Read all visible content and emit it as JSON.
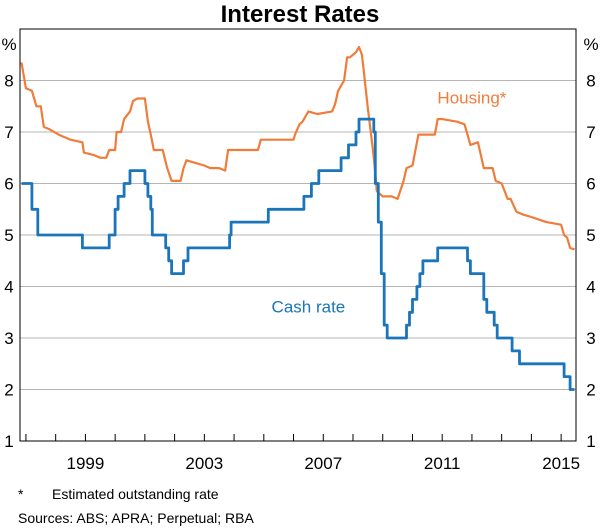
{
  "chart_data": {
    "type": "line",
    "title": "Interest Rates",
    "y_unit": "%",
    "ylim": [
      1,
      9
    ],
    "y_ticks": [
      1,
      2,
      3,
      4,
      5,
      6,
      7,
      8
    ],
    "xlim": [
      1996.8,
      2015.5
    ],
    "x_ticks": [
      1999,
      2003,
      2007,
      2011,
      2015
    ],
    "series": [
      {
        "name": "Housing*",
        "color": "#f07c3a",
        "step": false,
        "points": [
          [
            1996.85,
            8.35
          ],
          [
            1997.0,
            7.85
          ],
          [
            1997.2,
            7.8
          ],
          [
            1997.35,
            7.5
          ],
          [
            1997.5,
            7.5
          ],
          [
            1997.6,
            7.1
          ],
          [
            1997.8,
            7.05
          ],
          [
            1998.1,
            6.95
          ],
          [
            1998.5,
            6.85
          ],
          [
            1998.9,
            6.8
          ],
          [
            1998.95,
            6.6
          ],
          [
            1999.3,
            6.55
          ],
          [
            1999.5,
            6.5
          ],
          [
            1999.7,
            6.5
          ],
          [
            1999.8,
            6.65
          ],
          [
            2000.0,
            6.65
          ],
          [
            2000.05,
            7.0
          ],
          [
            2000.2,
            7.0
          ],
          [
            2000.3,
            7.25
          ],
          [
            2000.5,
            7.4
          ],
          [
            2000.6,
            7.6
          ],
          [
            2000.75,
            7.65
          ],
          [
            2001.0,
            7.65
          ],
          [
            2001.1,
            7.2
          ],
          [
            2001.2,
            6.95
          ],
          [
            2001.3,
            6.65
          ],
          [
            2001.6,
            6.65
          ],
          [
            2001.75,
            6.3
          ],
          [
            2001.9,
            6.05
          ],
          [
            2002.2,
            6.05
          ],
          [
            2002.3,
            6.3
          ],
          [
            2002.4,
            6.45
          ],
          [
            2002.7,
            6.4
          ],
          [
            2003.0,
            6.35
          ],
          [
            2003.2,
            6.3
          ],
          [
            2003.5,
            6.3
          ],
          [
            2003.7,
            6.25
          ],
          [
            2003.75,
            6.45
          ],
          [
            2003.8,
            6.65
          ],
          [
            2004.2,
            6.65
          ],
          [
            2004.8,
            6.65
          ],
          [
            2004.9,
            6.85
          ],
          [
            2005.5,
            6.85
          ],
          [
            2006.0,
            6.85
          ],
          [
            2006.05,
            6.95
          ],
          [
            2006.2,
            7.15
          ],
          [
            2006.3,
            7.2
          ],
          [
            2006.5,
            7.4
          ],
          [
            2006.8,
            7.35
          ],
          [
            2007.3,
            7.4
          ],
          [
            2007.4,
            7.55
          ],
          [
            2007.5,
            7.8
          ],
          [
            2007.7,
            8.0
          ],
          [
            2007.8,
            8.45
          ],
          [
            2007.9,
            8.45
          ],
          [
            2008.1,
            8.55
          ],
          [
            2008.2,
            8.65
          ],
          [
            2008.3,
            8.5
          ],
          [
            2008.35,
            8.25
          ],
          [
            2008.5,
            7.45
          ],
          [
            2008.6,
            7.0
          ],
          [
            2008.7,
            6.5
          ],
          [
            2008.75,
            6.2
          ],
          [
            2008.8,
            5.85
          ],
          [
            2009.0,
            5.75
          ],
          [
            2009.3,
            5.75
          ],
          [
            2009.5,
            5.7
          ],
          [
            2009.7,
            6.05
          ],
          [
            2009.8,
            6.3
          ],
          [
            2010.0,
            6.35
          ],
          [
            2010.2,
            6.95
          ],
          [
            2010.5,
            6.95
          ],
          [
            2010.75,
            6.95
          ],
          [
            2010.85,
            7.25
          ],
          [
            2011.0,
            7.25
          ],
          [
            2011.5,
            7.2
          ],
          [
            2011.75,
            7.15
          ],
          [
            2011.85,
            6.95
          ],
          [
            2011.95,
            6.75
          ],
          [
            2012.2,
            6.8
          ],
          [
            2012.3,
            6.55
          ],
          [
            2012.4,
            6.3
          ],
          [
            2012.7,
            6.3
          ],
          [
            2012.8,
            6.05
          ],
          [
            2013.0,
            6.0
          ],
          [
            2013.2,
            5.7
          ],
          [
            2013.3,
            5.7
          ],
          [
            2013.5,
            5.45
          ],
          [
            2013.7,
            5.4
          ],
          [
            2014.0,
            5.35
          ],
          [
            2014.5,
            5.25
          ],
          [
            2015.0,
            5.2
          ],
          [
            2015.1,
            5.0
          ],
          [
            2015.2,
            4.95
          ],
          [
            2015.3,
            4.75
          ],
          [
            2015.45,
            4.72
          ]
        ]
      },
      {
        "name": "Cash rate",
        "color": "#1b75bb",
        "step": true,
        "points": [
          [
            1996.85,
            6.0
          ],
          [
            1997.2,
            5.5
          ],
          [
            1997.4,
            5.0
          ],
          [
            1998.9,
            4.75
          ],
          [
            1999.8,
            5.0
          ],
          [
            2000.0,
            5.5
          ],
          [
            2000.1,
            5.75
          ],
          [
            2000.3,
            6.0
          ],
          [
            2000.5,
            6.25
          ],
          [
            2001.0,
            6.0
          ],
          [
            2001.1,
            5.75
          ],
          [
            2001.2,
            5.5
          ],
          [
            2001.25,
            5.0
          ],
          [
            2001.7,
            4.75
          ],
          [
            2001.8,
            4.5
          ],
          [
            2001.9,
            4.25
          ],
          [
            2002.3,
            4.5
          ],
          [
            2002.45,
            4.75
          ],
          [
            2003.85,
            5.0
          ],
          [
            2003.9,
            5.25
          ],
          [
            2005.15,
            5.5
          ],
          [
            2006.35,
            5.75
          ],
          [
            2006.6,
            6.0
          ],
          [
            2006.85,
            6.25
          ],
          [
            2007.6,
            6.5
          ],
          [
            2007.85,
            6.75
          ],
          [
            2008.1,
            7.0
          ],
          [
            2008.2,
            7.25
          ],
          [
            2008.7,
            7.0
          ],
          [
            2008.75,
            6.0
          ],
          [
            2008.85,
            5.25
          ],
          [
            2008.95,
            4.25
          ],
          [
            2009.05,
            3.25
          ],
          [
            2009.15,
            3.0
          ],
          [
            2009.8,
            3.25
          ],
          [
            2009.9,
            3.5
          ],
          [
            2010.0,
            3.75
          ],
          [
            2010.15,
            4.0
          ],
          [
            2010.25,
            4.25
          ],
          [
            2010.35,
            4.5
          ],
          [
            2010.85,
            4.75
          ],
          [
            2011.85,
            4.5
          ],
          [
            2011.95,
            4.25
          ],
          [
            2012.4,
            3.75
          ],
          [
            2012.5,
            3.5
          ],
          [
            2012.75,
            3.25
          ],
          [
            2012.85,
            3.0
          ],
          [
            2013.35,
            2.75
          ],
          [
            2013.6,
            2.5
          ],
          [
            2015.1,
            2.25
          ],
          [
            2015.3,
            2.0
          ],
          [
            2015.45,
            2.0
          ]
        ]
      }
    ],
    "series_labels": [
      {
        "text": "Housing*",
        "x": 2012.0,
        "y": 7.55
      },
      {
        "text": "Cash rate",
        "x": 2006.5,
        "y": 3.5
      }
    ]
  },
  "footnotes": {
    "note_marker": "*",
    "note_text": "Estimated outstanding rate",
    "sources": "Sources:  ABS; APRA; Perpetual; RBA"
  }
}
